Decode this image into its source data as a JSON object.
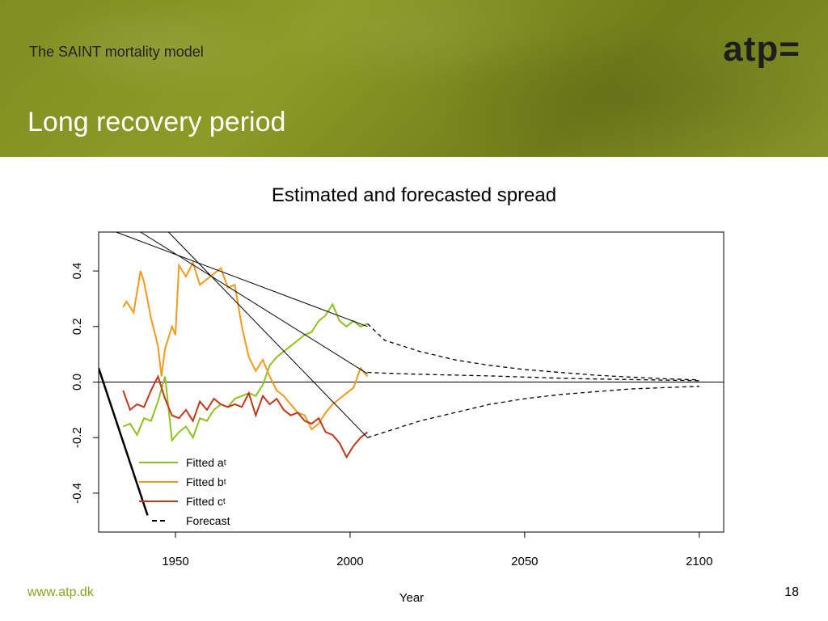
{
  "header": {
    "deck_subtitle": "The SAINT mortality model",
    "slide_title": "Long recovery period",
    "logo_text": "atp="
  },
  "footer": {
    "url": "www.atp.dk",
    "page_number": "18"
  },
  "chart_data": {
    "type": "line",
    "title": "Estimated and forecasted spread",
    "xlabel": "Year",
    "ylabel": "",
    "xlim": [
      1928,
      2107
    ],
    "ylim": [
      -0.54,
      0.54
    ],
    "x_ticks": [
      1950,
      2000,
      2050,
      2100
    ],
    "x_tick_labels": [
      "1950",
      "2000",
      "2050",
      "2100"
    ],
    "y_ticks": [
      -0.4,
      -0.2,
      0.0,
      0.2,
      0.4
    ],
    "y_tick_labels": [
      "-0.4",
      "-0.2",
      "0.0",
      "0.2",
      "0.4"
    ],
    "grid": false,
    "reference_line_y": 0.0,
    "legend": {
      "placement": "bottom-left",
      "entries": [
        {
          "label": "Fitted a",
          "sub": "t",
          "color": "#8dc21f",
          "style": "solid"
        },
        {
          "label": "Fitted b",
          "sub": "t",
          "color": "#f39a1b",
          "style": "solid"
        },
        {
          "label": "Fitted c",
          "sub": "t",
          "color": "#c0381a",
          "style": "solid"
        },
        {
          "label": "Forecast",
          "sub": "",
          "color": "#000000",
          "style": "dashed"
        }
      ]
    },
    "series": [
      {
        "color": "#8dc21f",
        "style": "solid",
        "x": [
          1935,
          1937,
          1939,
          1941,
          1943,
          1945,
          1947,
          1949,
          1951,
          1953,
          1955,
          1957,
          1959,
          1961,
          1963,
          1965,
          1967,
          1969,
          1971,
          1973,
          1975,
          1977,
          1979,
          1981,
          1983,
          1985,
          1987,
          1989,
          1991,
          1993,
          1995,
          1997,
          1999,
          2001,
          2003,
          2005
        ],
        "y": [
          -0.16,
          -0.15,
          -0.19,
          -0.13,
          -0.14,
          -0.07,
          0.02,
          -0.21,
          -0.18,
          -0.16,
          -0.2,
          -0.13,
          -0.14,
          -0.1,
          -0.08,
          -0.09,
          -0.06,
          -0.05,
          -0.04,
          -0.05,
          -0.01,
          0.06,
          0.09,
          0.11,
          0.13,
          0.15,
          0.17,
          0.18,
          0.22,
          0.24,
          0.28,
          0.22,
          0.2,
          0.22,
          0.2,
          0.21
        ]
      },
      {
        "color": "#f39a1b",
        "style": "solid",
        "x": [
          1935,
          1936,
          1938,
          1940,
          1941,
          1943,
          1945,
          1946,
          1947,
          1949,
          1950,
          1951,
          1953,
          1955,
          1957,
          1959,
          1961,
          1963,
          1965,
          1967,
          1969,
          1971,
          1973,
          1975,
          1977,
          1979,
          1981,
          1983,
          1985,
          1987,
          1989,
          1991,
          1993,
          1995,
          1997,
          1999,
          2001,
          2003,
          2005
        ],
        "y": [
          0.27,
          0.29,
          0.25,
          0.4,
          0.36,
          0.23,
          0.13,
          0.02,
          0.12,
          0.2,
          0.17,
          0.42,
          0.38,
          0.43,
          0.35,
          0.37,
          0.39,
          0.41,
          0.34,
          0.35,
          0.2,
          0.09,
          0.04,
          0.08,
          0.02,
          -0.03,
          -0.05,
          -0.08,
          -0.11,
          -0.12,
          -0.17,
          -0.15,
          -0.11,
          -0.08,
          -0.06,
          -0.04,
          -0.02,
          0.05,
          0.02
        ]
      },
      {
        "color": "#c0381a",
        "style": "solid",
        "x": [
          1935,
          1937,
          1939,
          1941,
          1943,
          1945,
          1947,
          1949,
          1951,
          1953,
          1955,
          1957,
          1959,
          1961,
          1963,
          1965,
          1967,
          1969,
          1971,
          1973,
          1975,
          1977,
          1979,
          1981,
          1983,
          1985,
          1987,
          1989,
          1991,
          1993,
          1995,
          1997,
          1999,
          2001,
          2003,
          2005
        ],
        "y": [
          -0.03,
          -0.1,
          -0.08,
          -0.09,
          -0.03,
          0.02,
          -0.06,
          -0.12,
          -0.13,
          -0.1,
          -0.14,
          -0.07,
          -0.1,
          -0.06,
          -0.08,
          -0.09,
          -0.08,
          -0.09,
          -0.04,
          -0.12,
          -0.05,
          -0.08,
          -0.06,
          -0.1,
          -0.12,
          -0.11,
          -0.14,
          -0.15,
          -0.13,
          -0.18,
          -0.19,
          -0.22,
          -0.27,
          -0.23,
          -0.2,
          -0.18
        ]
      },
      {
        "color": "#000000",
        "style": "dashed",
        "x": [
          2005,
          2010,
          2020,
          2030,
          2040,
          2050,
          2060,
          2070,
          2080,
          2090,
          2100
        ],
        "y": [
          0.21,
          0.15,
          0.11,
          0.08,
          0.06,
          0.045,
          0.035,
          0.025,
          0.018,
          0.012,
          0.008
        ]
      },
      {
        "color": "#000000",
        "style": "dashed",
        "x": [
          2005,
          2010,
          2020,
          2030,
          2040,
          2050,
          2060,
          2070,
          2080,
          2090,
          2100
        ],
        "y": [
          0.035,
          0.032,
          0.028,
          0.025,
          0.022,
          0.018,
          0.014,
          0.011,
          0.009,
          0.007,
          0.005
        ]
      },
      {
        "color": "#000000",
        "style": "dashed",
        "x": [
          2005,
          2010,
          2020,
          2030,
          2040,
          2050,
          2060,
          2070,
          2080,
          2090,
          2100
        ],
        "y": [
          -0.2,
          -0.18,
          -0.14,
          -0.11,
          -0.08,
          -0.06,
          -0.045,
          -0.035,
          -0.025,
          -0.02,
          -0.015
        ]
      },
      {
        "color": "#000000",
        "style": "solid",
        "width": 1,
        "x": [
          1933,
          2005
        ],
        "y": [
          0.54,
          0.2
        ]
      },
      {
        "color": "#000000",
        "style": "solid",
        "width": 1,
        "x": [
          1940,
          2005
        ],
        "y": [
          0.54,
          0.03
        ]
      },
      {
        "color": "#000000",
        "style": "solid",
        "width": 1,
        "x": [
          1948,
          2005
        ],
        "y": [
          0.54,
          -0.2
        ]
      },
      {
        "color": "#000000",
        "style": "solid",
        "width": 2.5,
        "x": [
          1928,
          1942
        ],
        "y": [
          0.05,
          -0.48
        ]
      }
    ]
  }
}
